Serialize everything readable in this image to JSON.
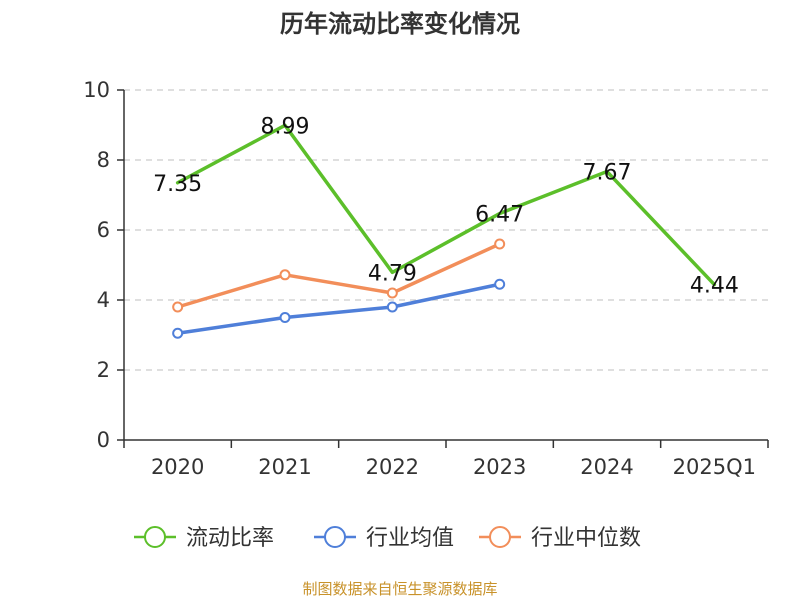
{
  "title": "历年流动比率变化情况",
  "source": "制图数据来自恒生聚源数据库",
  "chart_data": {
    "type": "line",
    "title": "历年流动比率变化情况",
    "categories": [
      "2020",
      "2021",
      "2022",
      "2023",
      "2024",
      "2025Q1"
    ],
    "ylim": [
      0,
      10
    ],
    "yticks": [
      0,
      2,
      4,
      6,
      8,
      10
    ],
    "grid": "horizontal-dashed",
    "legend_position": "bottom",
    "series": [
      {
        "name": "流动比率",
        "color": "#5cbf2a",
        "values": [
          7.35,
          8.99,
          4.79,
          6.47,
          7.67,
          4.44
        ],
        "labels": [
          "7.35",
          "8.99",
          "4.79",
          "6.47",
          "7.67",
          "4.44"
        ]
      },
      {
        "name": "行业均值",
        "color": "#4f7fd9",
        "values": [
          3.05,
          3.5,
          3.8,
          4.45,
          null,
          null
        ]
      },
      {
        "name": "行业中位数",
        "color": "#f28e5a",
        "values": [
          3.8,
          4.72,
          4.2,
          5.6,
          null,
          null
        ]
      }
    ]
  }
}
